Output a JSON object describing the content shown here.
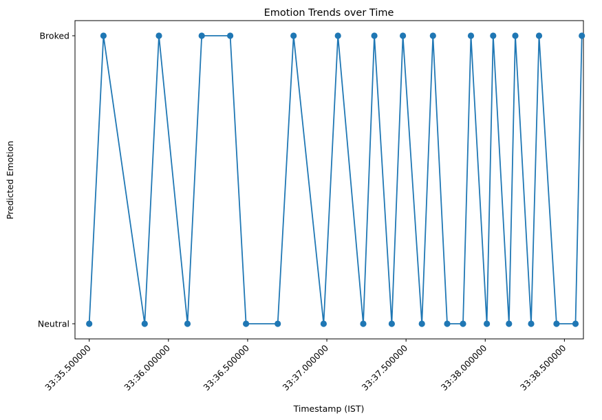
{
  "chart_data": {
    "type": "line",
    "title": "Emotion Trends over Time",
    "xlabel": "Timestamp (IST)",
    "ylabel": "Predicted Emotion",
    "x_tick_values": [
      35.5,
      36.0,
      36.5,
      37.0,
      37.5,
      38.0,
      38.5
    ],
    "x_tick_labels": [
      "33:35.500000",
      "33:36.000000",
      "33:36.500000",
      "33:37.000000",
      "33:37.500000",
      "33:38.000000",
      "33:38.500000"
    ],
    "y_categories": [
      "Neutral",
      "Broked"
    ],
    "xlim": [
      35.41,
      38.62
    ],
    "grid": false,
    "color": "#1f77b4",
    "series": [
      {
        "x": [
          35.5,
          35.59,
          35.85,
          35.94,
          36.12,
          36.21,
          36.39,
          36.49,
          36.69,
          36.79,
          36.98,
          37.07,
          37.23,
          37.3,
          37.41,
          37.48,
          37.6,
          37.67,
          37.76,
          37.86,
          37.91,
          38.01,
          38.05,
          38.15,
          38.19,
          38.29,
          38.34,
          38.45,
          38.57,
          38.61
        ],
        "y": [
          "Neutral",
          "Broked",
          "Neutral",
          "Broked",
          "Neutral",
          "Broked",
          "Broked",
          "Neutral",
          "Neutral",
          "Broked",
          "Neutral",
          "Broked",
          "Neutral",
          "Broked",
          "Neutral",
          "Broked",
          "Neutral",
          "Broked",
          "Neutral",
          "Neutral",
          "Broked",
          "Neutral",
          "Broked",
          "Neutral",
          "Broked",
          "Neutral",
          "Broked",
          "Neutral",
          "Neutral",
          "Broked"
        ]
      }
    ]
  }
}
